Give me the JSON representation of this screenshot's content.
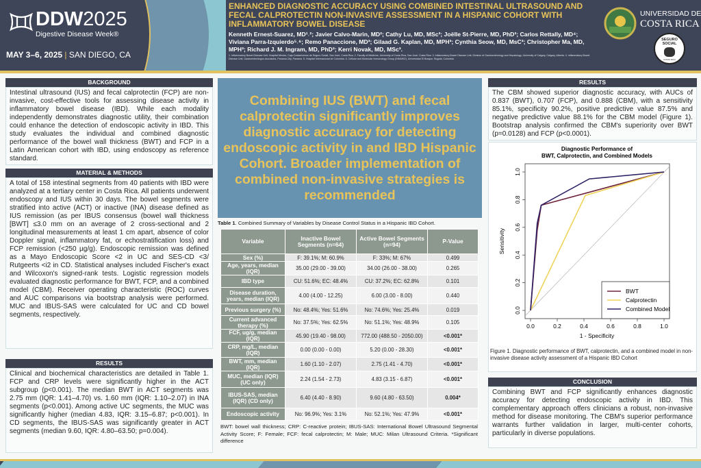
{
  "header": {
    "logo_main": "DDW",
    "logo_year": "2025",
    "logo_sub": "Digestive Disease Week®",
    "event_date": "MAY 3–6, 2025",
    "event_sep": "|",
    "event_place": "SAN DIEGO, CA",
    "title": "Enhanced diagnostic accuracy using combined intestinal ultrasound and fecal calprotectin non-invasive assessment in a Hispanic cohort with inflammatory bowel disease",
    "authors": "Kenneth Ernest-Suarez, MD¹˒²; Javier Calvo-Marin, MD²; Cathy Lu, MD, MSc³; Joëlle St-Pierre, MD, PhD³; Carlos Rettally, MD⁴; Viviana Parra-Izquierdo⁵˒⁶; Remo Panaccione, MD³; Gilaad G. Kaplan, MD, MPH³; Cynthia Seow, MD, MsC³; Christopher Ma, MD, MPH³; Richard J. M. Ingram, MD, PhD³; Kerri Novak, MD, MSc³.",
    "affiliations": "1. Inflammatory Bowel Disease Unit, Hospital Mexico, Caja Costarricense de Seguro Social, San José, Costa Rica. 2. Faculty of Medicine, University of Costa Rica, San José, Costa Rica. 3. Inflammatory Bowel Disease Unit, Division of Gastroenterology and Hepatology, University of Calgary, Calgary, Alberta. 4. Inflammatory Bowel Disease Unit, Gastroenterólogos Asociados, Panama City, Panama. 5. Hospital Internacional de Colombia. 6. Cellular and Molecular Immunology Group (INMUBO), Universidad El Bosque, Bogotá, Colombia",
    "ucr_line1": "UNIVERSIDAD DE",
    "ucr_line2": "COSTA RICA",
    "seguro_text": "SEGURO SOCIAL",
    "seguro_sub": "COSTA RICA"
  },
  "background": {
    "heading": "BACKGROUND",
    "text": "Intestinal ultrasound (IUS) and fecal calprotectin (FCP) are non-invasive, cost-effective tools for assessing disease activity in inflammatory bowel disease (IBD). While each modality independently demonstrates diagnostic utility, their combination could enhance the detection of endoscopic activity in IBD. This study evaluates the individual and combined diagnostic performance of the bowel wall thickness (BWT) and FCP in a Latin American cohort with IBD, using endoscopy as reference standard."
  },
  "methods": {
    "heading": "MATERIAL & METHODS",
    "text": "A total of 158 intestinal segments from 40 patients with IBD were analyzed at a tertiary center in Costa Rica. All patients underwent endoscopy and IUS within 30 days. The bowel segments were stratified into active (ACT) or inactive (INA) disease defined as IUS remission (as per IBUS consensus (bowel wall thickness [BWT] ≤3.0 mm on an average of 2 cross-sectional and 2 longitudinal measurements at least 1 cm apart, absence of color Doppler signal, inflammatory fat, or echostratification loss) and FCP remission (<250 µg/g). Endoscopic remission was defined as a Mayo Endoscopic Score <2 in UC and SES-CD <3/ Rutgeerts <i2 in CD. Statistical analyses included Fischer's exact and Wilcoxon's signed-rank tests. Logistic regression models evaluated diagnostic performance for BWT, FCP, and a combined model (CBM). Receiver operating characteristic (ROC) curves and AUC comparisons via bootstrap analysis were performed. MUC and IBUS-SAS were calculated for UC and CD bowel segments, respectively."
  },
  "results_left": {
    "heading": "RESULTS",
    "text": "Clinical and biochemical characteristics are detailed in Table 1. FCP and CRP levels were significantly higher in the ACT subgroup (p<0.001). The median BWT in ACT segments was 2.75 mm (IQR: 1.41–4.70) vs. 1.60 mm (IQR: 1.10–2.07) in INA segments (p<0.001). Among active UC segments, the MUC was significantly higher (median 4.83, IQR: 3.15–6.87; p<0.001). In CD segments, the IBUS-SAS was significantly greater in ACT segments (median 9.60, IQR: 4.80–63.50; p=0.004)."
  },
  "takeaway": "Combining IUS (BWT) and fecal calprotectin significantly improves diagnostic accuracy for detecting endoscopic activity in and IBD Hispanic Cohort. Broader implementation of combined non-invasive strategies is recommended",
  "table": {
    "caption_bold": "Table 1",
    "caption": ". Combined Summary of Variables by Disease Control Status in a Hispanic IBD Cohort.",
    "headers": [
      "Variable",
      "Inactive Bowel Segments (n=64)",
      "Active Bowel Segments (n=94)",
      "P-Value"
    ],
    "rows": [
      [
        "Sex (%)",
        "F: 39.1%; M: 60.9%",
        "F: 33%; M: 67%",
        "0.499"
      ],
      [
        "Age, years, median (IQR)",
        "35.00 (29.00 - 39.00)",
        "34.00 (26.00 - 38.00)",
        "0.265"
      ],
      [
        "IBD type",
        "CU: 51.6%; EC: 48.4%",
        "CU: 37.2%; EC: 62.8%",
        "0.101"
      ],
      [
        "Disease duration, years, median (IQR)",
        "4.00 (4.00 - 12.25)",
        "6.00 (3.00 - 8.00)",
        "0.440"
      ],
      [
        "Previous surgery (%)",
        "No: 48.4%; Yes: 51.6%",
        "No: 74.6%; Yes: 25.4%",
        "0.019"
      ],
      [
        "Current advanced therapy (%)",
        "No: 37.5%; Yes: 62.5%",
        "No: 51.1%; Yes: 48.9%",
        "0.105"
      ],
      [
        "FCF, ug/g, median (IQR)",
        "45.90 (19.40 - 98.00)",
        "772.00 (488.50 - 2050.00)",
        "<0.001*"
      ],
      [
        "CRP, mg/L, median (IQR)",
        "0.00 (0.00 - 0.00)",
        "5.20 (0.00 - 28.30)",
        "<0.001*"
      ],
      [
        "BWT, mm, median (IQR)",
        "1.60 (1.10 - 2.07)",
        "2.75 (1.41 - 4.70)",
        "<0.001*"
      ],
      [
        "MUC, median (IQR) (UC only)",
        "2.24 (1.54 - 2.73)",
        "4.83 (3.15 - 6.87)",
        "<0.001*"
      ],
      [
        "IBUS-SAS, median (IQR) (CD only)",
        "6.40 (4.40 - 8.90)",
        "9.60 (4.80 - 63.50)",
        "0.004*"
      ],
      [
        "Endoscopic activity",
        "No: 96.9%; Yes: 3.1%",
        "No: 52.1%; Yes: 47.9%",
        "<0.001*"
      ]
    ],
    "footnote": "BWT: bowel wall thickness; CRP: C-reactive protein; IBUS-SAS: International Bowel Ultrasound Segmental Activity Score; F: Female; FCF: fecal calprotectin; M: Male; MUC: Milan Ultrasound Criteria. *Significant difference"
  },
  "results_right": {
    "heading": "RESULTS",
    "text": "The CBM showed superior diagnostic accuracy, with AUCs of 0.837 (BWT), 0.707 (FCP), and 0.888 (CBM), with a sensitivity 85.1%, specificity 90.2%, positive predictive value 87.5% and negative predictive value 88.1% for the CBM model (Figure 1). Bootstrap analysis confirmed the CBM's superiority over BWT (p=0.0128) and FCP (p<0.0001)."
  },
  "figure_caption": "Figure 1. Diagnostic performance of BWT, calprotectin, and a combined model in non-invasive disease activity assessment of a Hispanic IBD Cohort",
  "conclusion": {
    "heading": "CONCLUSION",
    "text": "Combining BWT and FCP significantly enhances diagnostic accuracy for detecting endoscopic activity in IBD. This complementary approach offers clinicians a robust, non-invasive method for disease monitoring. The CBM's superior performance warrants further validation in larger, multi-center cohorts, particularly in diverse populations."
  },
  "colors": {
    "header": "#3e4558",
    "gold": "#e2c15f",
    "takeaway": "#6793b1",
    "table_header": "#8d988f"
  },
  "chart_data": {
    "type": "line",
    "title": "Diagnostic Performance of\nBWT, Calprotectin, and Combined Models",
    "title_lines": [
      "Diagnostic Performance of",
      "BWT, Calprotectin, and Combined Models"
    ],
    "xlabel": "1 - Specificity",
    "ylabel": "Sensitivity",
    "xlim": [
      0,
      1
    ],
    "ylim": [
      0,
      1
    ],
    "xticks": [
      "0.0",
      "0.2",
      "0.4",
      "0.6",
      "0.8",
      "1.0"
    ],
    "yticks": [
      "0.0",
      "0.2",
      "0.4",
      "0.6",
      "0.8",
      "1.0"
    ],
    "grid": false,
    "legend": "bottom-right",
    "reference_line": "diagonal",
    "series": [
      {
        "name": "BWT",
        "color": "#6e2339",
        "x": [
          0,
          0.05,
          0.08,
          1
        ],
        "y": [
          0,
          0.58,
          0.76,
          1
        ]
      },
      {
        "name": "Calprotectin",
        "color": "#f0d35a",
        "x": [
          0,
          0.41,
          1
        ],
        "y": [
          0,
          0.83,
          1
        ]
      },
      {
        "name": "Combined Model",
        "color": "#2d1d63",
        "x": [
          0,
          0.05,
          0.08,
          0.44,
          1
        ],
        "y": [
          0,
          0.63,
          0.76,
          0.95,
          1
        ]
      }
    ]
  }
}
